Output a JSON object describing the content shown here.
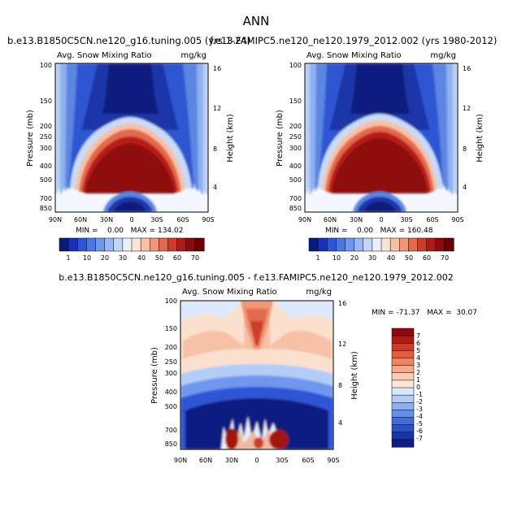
{
  "figure_title": "ANN",
  "chart_data": [
    {
      "type": "heatmap",
      "title": "b.e13.B1850C5CN.ne120_g16.tuning.005 (yrs 1-24)",
      "subtitle_left": "Avg. Snow Mixing Ratio",
      "units": "mg/kg",
      "xlabel": "",
      "ylabel": "Pressure (mb)",
      "y2label": "Height (km)",
      "x_ticks": [
        "90N",
        "60N",
        "30N",
        "0",
        "30S",
        "60S",
        "90S"
      ],
      "y_ticks": [
        100,
        150,
        200,
        250,
        300,
        400,
        500,
        700,
        850
      ],
      "y2_ticks": [
        16,
        12,
        8,
        4
      ],
      "ylim": [
        1000,
        100
      ],
      "stats": "MIN =    0.00   MAX = 134.02",
      "min": 0.0,
      "max": 134.02,
      "colorbar_levels": [
        1,
        5,
        10,
        15,
        20,
        25,
        30,
        35,
        40,
        45,
        50,
        55,
        60,
        65,
        70
      ],
      "colorbar_labels": [
        "1",
        "10",
        "20",
        "30",
        "40",
        "50",
        "60",
        "70"
      ],
      "colorbar_colors": [
        "#0a1a7a",
        "#1a2fb8",
        "#2e55d6",
        "#4a78e6",
        "#6f97ee",
        "#98b8f4",
        "#c2d6fa",
        "#eaf0fb",
        "#fbe3d6",
        "#f6c1a7",
        "#ef9777",
        "#e36a4d",
        "#cd3d2b",
        "#ad1a19",
        "#8a0a0f",
        "#6a0005"
      ]
    },
    {
      "type": "heatmap",
      "title": "f.e13.FAMIPC5.ne120_ne120.1979_2012.002 (yrs 1980-2012)",
      "subtitle_left": "Avg. Snow Mixing Ratio",
      "units": "mg/kg",
      "xlabel": "",
      "ylabel": "Pressure (mb)",
      "y2label": "Height (km)",
      "x_ticks": [
        "90N",
        "60N",
        "30N",
        "0",
        "30S",
        "60S",
        "90S"
      ],
      "y_ticks": [
        100,
        150,
        200,
        250,
        300,
        400,
        500,
        700,
        850
      ],
      "y2_ticks": [
        16,
        12,
        8,
        4
      ],
      "ylim": [
        1000,
        100
      ],
      "stats": "MIN =    0.00   MAX = 160.48",
      "min": 0.0,
      "max": 160.48,
      "colorbar_levels": [
        1,
        5,
        10,
        15,
        20,
        25,
        30,
        35,
        40,
        45,
        50,
        55,
        60,
        65,
        70
      ],
      "colorbar_labels": [
        "1",
        "10",
        "20",
        "30",
        "40",
        "50",
        "60",
        "70"
      ],
      "colorbar_colors": [
        "#0a1a7a",
        "#1a2fb8",
        "#2e55d6",
        "#4a78e6",
        "#6f97ee",
        "#98b8f4",
        "#c2d6fa",
        "#eaf0fb",
        "#fbe3d6",
        "#f6c1a7",
        "#ef9777",
        "#e36a4d",
        "#cd3d2b",
        "#ad1a19",
        "#8a0a0f",
        "#6a0005"
      ]
    },
    {
      "type": "heatmap",
      "title": "b.e13.B1850C5CN.ne120_g16.tuning.005 - f.e13.FAMIPC5.ne120_ne120.1979_2012.002",
      "subtitle_left": "Avg. Snow Mixing Ratio",
      "units": "mg/kg",
      "xlabel": "",
      "ylabel": "Pressure (mb)",
      "y2label": "Height (km)",
      "x_ticks": [
        "90N",
        "60N",
        "30N",
        "0",
        "30S",
        "60S",
        "90S"
      ],
      "y_ticks": [
        100,
        150,
        200,
        250,
        300,
        400,
        500,
        700,
        850
      ],
      "y2_ticks": [
        16,
        12,
        8,
        4
      ],
      "ylim": [
        1000,
        100
      ],
      "stats": "MIN = -71.37   MAX =  30.07",
      "min": -71.37,
      "max": 30.07,
      "colorbar_labels": [
        "7",
        "6",
        "5",
        "4",
        "3",
        "2",
        "1",
        "0",
        "-1",
        "-2",
        "-3",
        "-4",
        "-5",
        "-6",
        "-7"
      ],
      "colorbar_colors": [
        "#8a0a0f",
        "#b01a14",
        "#cf3a25",
        "#e25e3f",
        "#ef8560",
        "#f6a98a",
        "#fbcdb2",
        "#fce6d8",
        "#d9e8fb",
        "#b3cdf6",
        "#8cb0ef",
        "#658fe5",
        "#416dd9",
        "#2a4fc6",
        "#1a33a8",
        "#0d1d82"
      ]
    }
  ]
}
